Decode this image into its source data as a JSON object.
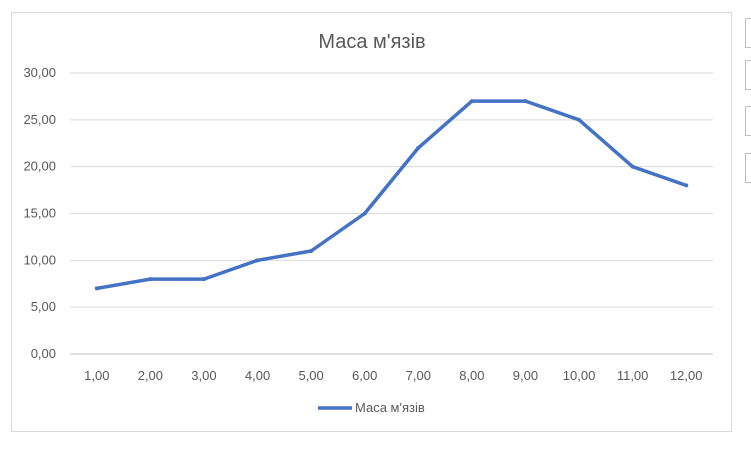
{
  "chart_data": {
    "type": "line",
    "title": "Маса м'язів",
    "x": [
      "1,00",
      "2,00",
      "3,00",
      "4,00",
      "5,00",
      "6,00",
      "7,00",
      "8,00",
      "9,00",
      "10,00",
      "11,00",
      "12,00"
    ],
    "series": [
      {
        "name": "Маса м'язів",
        "values": [
          7,
          8,
          8,
          10,
          11,
          15,
          22,
          27,
          27,
          25,
          20,
          18
        ],
        "color": "#4472c4"
      }
    ],
    "yticks": [
      "0,00",
      "5,00",
      "10,00",
      "15,00",
      "20,00",
      "25,00",
      "30,00"
    ],
    "ylim": [
      0,
      30
    ],
    "grid": true,
    "legend": "bottom"
  }
}
